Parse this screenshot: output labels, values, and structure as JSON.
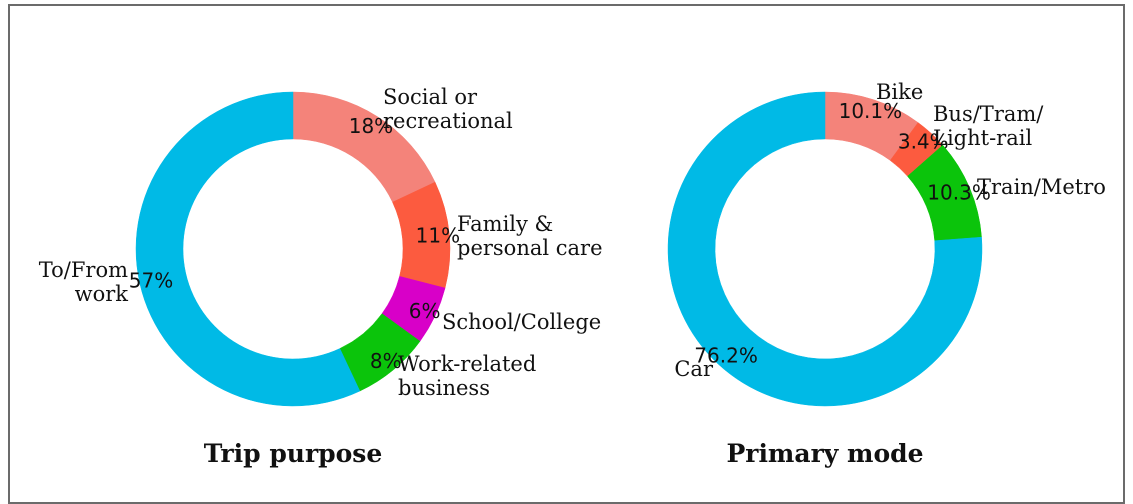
{
  "chart_data": [
    {
      "type": "pie",
      "variant": "donut",
      "title": "Trip purpose",
      "slices": [
        {
          "label": [
            "Social or",
            "recreational"
          ],
          "value": 18,
          "value_label": "18%",
          "color": "#f4837a"
        },
        {
          "label": [
            "Family &",
            "personal care"
          ],
          "value": 11,
          "value_label": "11%",
          "color": "#fc5b3f"
        },
        {
          "label": [
            "School/College"
          ],
          "value": 6,
          "value_label": "6%",
          "color": "#d800c8"
        },
        {
          "label": [
            "Work-related",
            "business"
          ],
          "value": 8,
          "value_label": "8%",
          "color": "#0bc40b"
        },
        {
          "label": [
            "To/From",
            "work"
          ],
          "value": 57,
          "value_label": "57%",
          "color": "#00bae6"
        }
      ]
    },
    {
      "type": "pie",
      "variant": "donut",
      "title": "Primary mode",
      "slices": [
        {
          "label": [
            "Bike"
          ],
          "value": 10.1,
          "value_label": "10.1%",
          "color": "#f4837a"
        },
        {
          "label": [
            "Bus/Tram/",
            "Light-rail"
          ],
          "value": 3.4,
          "value_label": "3.4%",
          "color": "#fc5b3f"
        },
        {
          "label": [
            "Train/Metro"
          ],
          "value": 10.3,
          "value_label": "10.3%",
          "color": "#0bc40b"
        },
        {
          "label": [
            "Car"
          ],
          "value": 76.2,
          "value_label": "76.2%",
          "color": "#00bae6"
        }
      ]
    }
  ]
}
